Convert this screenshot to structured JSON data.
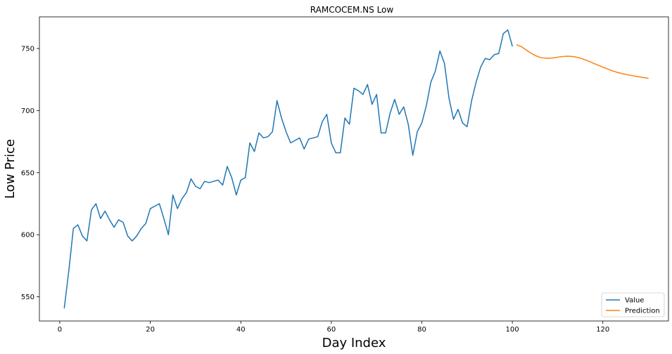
{
  "chart_data": {
    "type": "line",
    "title": "RAMCOCEM.NS Low",
    "xlabel": "Day Index",
    "ylabel": "Low Price",
    "xlim": [
      -4.5,
      134.5
    ],
    "ylim": [
      530.5,
      775.5
    ],
    "xticks": [
      0,
      20,
      40,
      60,
      80,
      100,
      120
    ],
    "yticks": [
      550,
      600,
      650,
      700,
      750
    ],
    "grid": false,
    "legend_position": "bottom-right",
    "series": [
      {
        "name": "Value",
        "color": "#1f77b4",
        "x": [
          1,
          2,
          3,
          4,
          5,
          6,
          7,
          8,
          9,
          10,
          11,
          12,
          13,
          14,
          15,
          16,
          17,
          18,
          19,
          20,
          21,
          22,
          23,
          24,
          25,
          26,
          27,
          28,
          29,
          30,
          31,
          32,
          33,
          34,
          35,
          36,
          37,
          38,
          39,
          40,
          41,
          42,
          43,
          44,
          45,
          46,
          47,
          48,
          49,
          50,
          51,
          52,
          53,
          54,
          55,
          56,
          57,
          58,
          59,
          60,
          61,
          62,
          63,
          64,
          65,
          66,
          67,
          68,
          69,
          70,
          71,
          72,
          73,
          74,
          75,
          76,
          77,
          78,
          79,
          80,
          81,
          82,
          83,
          84,
          85,
          86,
          87,
          88,
          89,
          90,
          91,
          92,
          93,
          94,
          95,
          96,
          97,
          98,
          99,
          100
        ],
        "y": [
          541,
          571,
          605,
          608,
          599,
          595,
          620,
          625,
          613,
          619,
          612,
          606,
          612,
          610,
          599,
          595,
          599,
          605,
          609,
          621,
          623,
          625,
          613,
          600,
          632,
          621,
          629,
          634,
          645,
          639,
          637,
          643,
          642,
          643,
          644,
          640,
          655,
          646,
          632,
          644,
          646,
          674,
          667,
          682,
          678,
          679,
          683,
          708,
          694,
          683,
          674,
          676,
          678,
          669,
          677,
          678,
          679,
          691,
          697,
          674,
          666,
          666,
          694,
          689,
          718,
          716,
          713,
          721,
          705,
          713,
          682,
          682,
          698,
          709,
          697,
          703,
          689,
          664,
          683,
          690,
          704,
          723,
          732,
          748,
          738,
          710,
          693,
          701,
          690,
          687,
          708,
          723,
          735,
          742,
          741,
          745,
          746,
          762,
          765,
          752
        ]
      },
      {
        "name": "Prediction",
        "color": "#ff7f0e",
        "x": [
          101,
          102,
          103,
          104,
          105,
          106,
          107,
          108,
          109,
          110,
          111,
          112,
          113,
          114,
          115,
          116,
          117,
          118,
          119,
          120,
          121,
          122,
          123,
          124,
          125,
          126,
          127,
          128,
          129,
          130
        ],
        "y": [
          753,
          751.5,
          749,
          746.5,
          744.5,
          743,
          742.3,
          742.1,
          742.4,
          743,
          743.5,
          743.8,
          743.7,
          743.2,
          742.3,
          741,
          739.6,
          738,
          736.5,
          735,
          733.6,
          732.2,
          731,
          730,
          729.2,
          728.5,
          727.8,
          727.2,
          726.6,
          726
        ]
      }
    ]
  }
}
